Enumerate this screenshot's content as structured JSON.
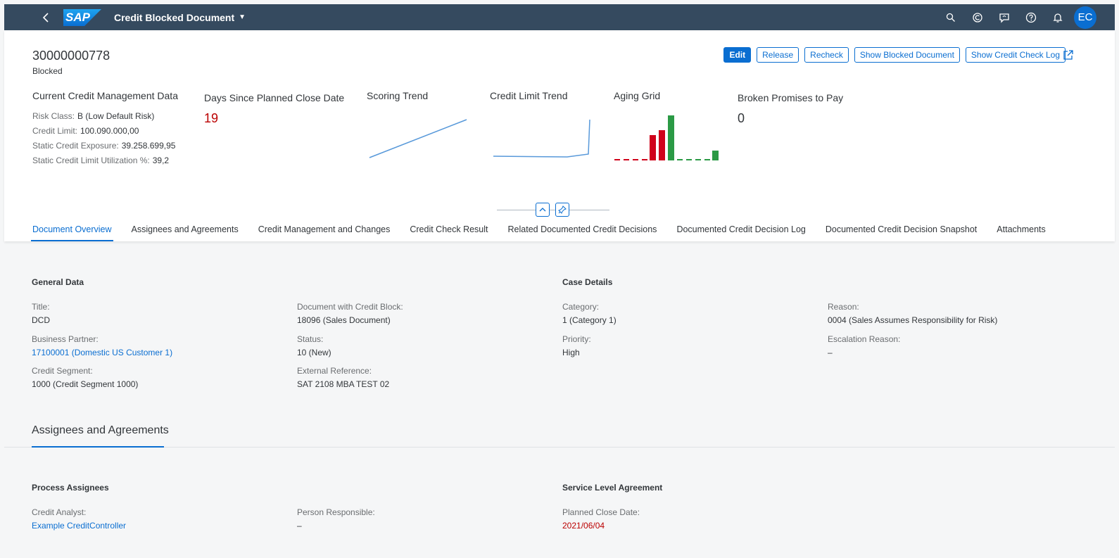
{
  "shell": {
    "logo_text": "SAP",
    "app_title": "Credit Blocked Document",
    "avatar_initials": "EC"
  },
  "header": {
    "doc_id": "30000000778",
    "status": "Blocked",
    "buttons": {
      "edit": "Edit",
      "release": "Release",
      "recheck": "Recheck",
      "show_blocked": "Show Blocked Document",
      "show_log": "Show Credit Check Log"
    },
    "credit_data": {
      "title": "Current Credit Management Data",
      "risk_class_label": "Risk Class:",
      "risk_class_value": "B (Low Default Risk)",
      "credit_limit_label": "Credit Limit:",
      "credit_limit_value": "100.090.000,00",
      "exposure_label": "Static Credit Exposure:",
      "exposure_value": "39.258.699,95",
      "utilization_label": "Static Credit Limit Utilization %:",
      "utilization_value": "39,2"
    },
    "days_since": {
      "title": "Days Since Planned Close Date",
      "value": "19"
    },
    "scoring_trend": {
      "title": "Scoring Trend"
    },
    "credit_limit_trend": {
      "title": "Credit Limit Trend"
    },
    "aging_grid": {
      "title": "Aging Grid"
    },
    "broken_promises": {
      "title": "Broken Promises to Pay",
      "value": "0"
    },
    "colors": {
      "accent": "#0a6ed1",
      "negative": "#bb0000",
      "positive": "#2b9a45"
    }
  },
  "tabs": [
    {
      "label": "Document Overview",
      "active": true
    },
    {
      "label": "Assignees and Agreements"
    },
    {
      "label": "Credit Management and Changes"
    },
    {
      "label": "Credit Check Result"
    },
    {
      "label": "Related Documented Credit Decisions"
    },
    {
      "label": "Documented Credit Decision Log"
    },
    {
      "label": "Documented Credit Decision Snapshot"
    },
    {
      "label": "Attachments"
    }
  ],
  "general": {
    "title": "General Data",
    "title_label": "Title:",
    "title_value": "DCD",
    "bp_label": "Business Partner:",
    "bp_value": "17100001 (Domestic US Customer 1)",
    "segment_label": "Credit Segment:",
    "segment_value": "1000 (Credit Segment 1000)",
    "doc_label": "Document with Credit Block:",
    "doc_value": "18096 (Sales Document)",
    "status_label": "Status:",
    "status_value": "10 (New)",
    "ext_label": "External Reference:",
    "ext_value": "SAT 2108 MBA TEST 02"
  },
  "case": {
    "title": "Case Details",
    "category_label": "Category:",
    "category_value": "1 (Category 1)",
    "priority_label": "Priority:",
    "priority_value": "High",
    "reason_label": "Reason:",
    "reason_value": "0004 (Sales Assumes Responsibility for Risk)",
    "escalation_label": "Escalation Reason:",
    "escalation_value": "–"
  },
  "assignees_section": {
    "title": "Assignees and Agreements"
  },
  "process": {
    "title": "Process Assignees",
    "analyst_label": "Credit Analyst:",
    "analyst_value": "Example CreditController",
    "responsible_label": "Person Responsible:",
    "responsible_value": "–"
  },
  "sla": {
    "title": "Service Level Agreement",
    "close_label": "Planned Close Date:",
    "close_value": "2021/06/04"
  }
}
